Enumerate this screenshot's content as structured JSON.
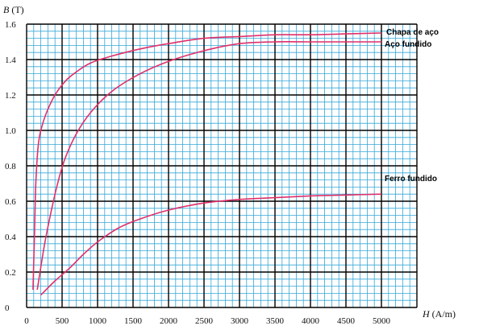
{
  "chart_data": {
    "type": "line",
    "title": "",
    "xlabel_symbol": "H",
    "xlabel_unit": "(A/m)",
    "ylabel_symbol": "B",
    "ylabel_unit": "(T)",
    "xlim": [
      0,
      5500
    ],
    "ylim": [
      0,
      1.6
    ],
    "x_ticks": [
      0,
      500,
      1000,
      1500,
      2000,
      2500,
      3000,
      3500,
      4000,
      4500,
      5000
    ],
    "x_tick_labels": [
      "0",
      "500",
      "1000",
      "1500",
      "2000",
      "2500",
      "3000",
      "3500",
      "4000",
      "4500",
      "5000"
    ],
    "y_ticks": [
      0,
      0.2,
      0.4,
      0.6,
      0.8,
      1.0,
      1.2,
      1.4,
      1.6
    ],
    "y_tick_labels": [
      "0",
      "0.2",
      "0.4",
      "0.6",
      "0.8",
      "1.0",
      "1.2",
      "1.4",
      "1.6"
    ],
    "grid": true,
    "line_color": "#e0306a",
    "grid_minor_color": "#36a7d8",
    "grid_major_color": "#000000",
    "series": [
      {
        "name": "Chapa de aço",
        "x": [
          90,
          110,
          130,
          160,
          200,
          280,
          400,
          550,
          700,
          900,
          1200,
          1600,
          2000,
          2500,
          3000,
          3500,
          4000,
          4500,
          5000
        ],
        "y": [
          0.1,
          0.4,
          0.7,
          0.9,
          1.0,
          1.1,
          1.2,
          1.28,
          1.33,
          1.38,
          1.42,
          1.46,
          1.49,
          1.52,
          1.53,
          1.54,
          1.54,
          1.545,
          1.55
        ]
      },
      {
        "name": "Aço fundido",
        "x": [
          150,
          250,
          350,
          450,
          550,
          700,
          900,
          1200,
          1600,
          2000,
          2500,
          3000,
          3500,
          4000,
          4500,
          5000
        ],
        "y": [
          0.1,
          0.35,
          0.55,
          0.72,
          0.85,
          0.98,
          1.1,
          1.22,
          1.32,
          1.39,
          1.45,
          1.49,
          1.5,
          1.5,
          1.5,
          1.5
        ]
      },
      {
        "name": "Ferro fundido",
        "x": [
          200,
          400,
          600,
          800,
          1000,
          1300,
          1600,
          2000,
          2500,
          3000,
          3500,
          4000,
          4500,
          5000
        ],
        "y": [
          0.07,
          0.15,
          0.22,
          0.3,
          0.37,
          0.45,
          0.5,
          0.55,
          0.59,
          0.61,
          0.62,
          0.63,
          0.635,
          0.64
        ]
      }
    ]
  }
}
